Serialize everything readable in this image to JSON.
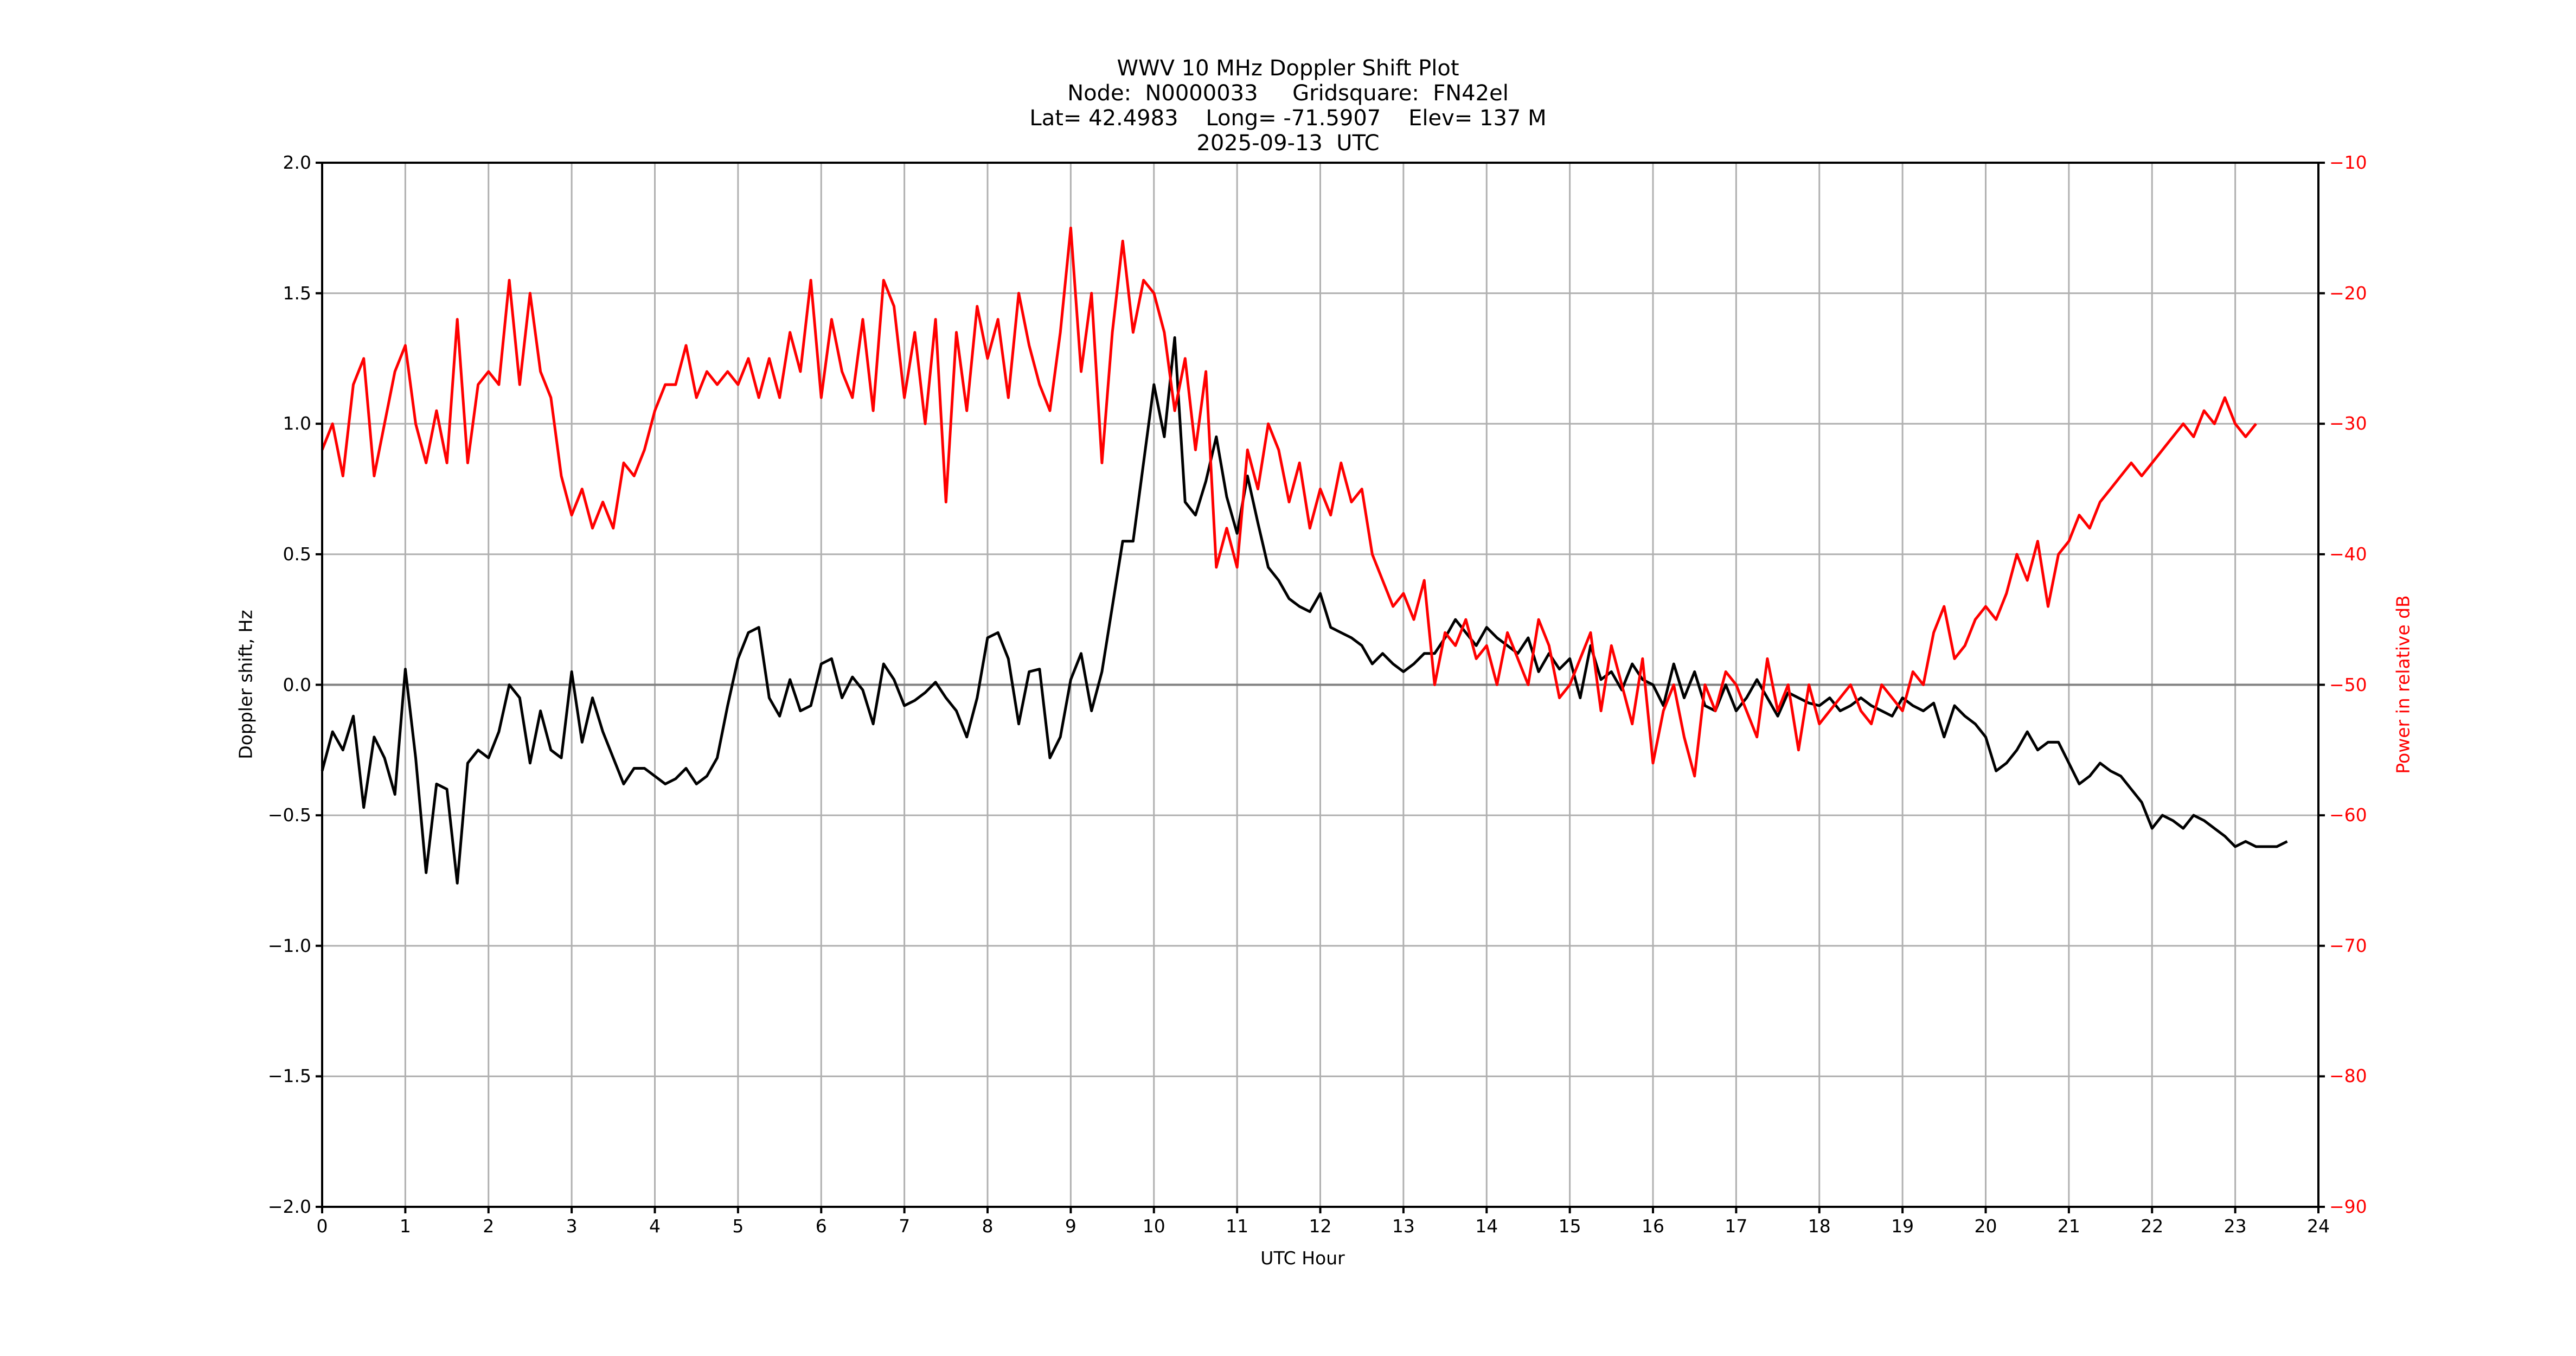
{
  "figure": {
    "title_lines": [
      "WWV 10 MHz Doppler Shift Plot",
      "Node:  N0000033     Gridsquare:  FN42el",
      "Lat= 42.4983    Long= -71.5907    Elev= 137 M",
      "2025-09-13  UTC"
    ],
    "xlabel": "UTC Hour",
    "ylabel_left": "Doppler shift, Hz",
    "ylabel_right": "Power in relative dB",
    "colors": {
      "doppler": "#000000",
      "power": "#ff0000",
      "grid": "#b0b0b0",
      "zero_line": "#808080",
      "right_axis_text": "#ff0000"
    }
  },
  "axes": {
    "x_ticks": [
      "0",
      "1",
      "2",
      "3",
      "4",
      "5",
      "6",
      "7",
      "8",
      "9",
      "10",
      "11",
      "12",
      "13",
      "14",
      "15",
      "16",
      "17",
      "18",
      "19",
      "20",
      "21",
      "22",
      "23",
      "24"
    ],
    "y_left_ticks": [
      "2.0",
      "1.5",
      "1.0",
      "0.5",
      "0.0",
      "−0.5",
      "−1.0",
      "−1.5",
      "−2.0"
    ],
    "y_right_ticks": [
      "−10",
      "−20",
      "−30",
      "−40",
      "−50",
      "−60",
      "−70",
      "−80",
      "−90"
    ]
  },
  "chart_data": {
    "type": "line",
    "title": "WWV 10 MHz Doppler Shift Plot",
    "subtitle": "Node: N0000033  Gridsquare: FN42el  Lat= 42.4983  Long= -71.5907  Elev= 137 M  2025-09-13 UTC",
    "xlabel": "UTC Hour",
    "ylabel": "Doppler shift, Hz",
    "y2label": "Power in relative dB",
    "xlim": [
      0,
      24
    ],
    "ylim": [
      -2.0,
      2.0
    ],
    "y2lim": [
      -90,
      -10
    ],
    "grid": true,
    "legend": "none",
    "x_step_hours": 0.125,
    "x": [
      0.0,
      0.125,
      0.25,
      0.375,
      0.5,
      0.625,
      0.75,
      0.875,
      1.0,
      1.125,
      1.25,
      1.375,
      1.5,
      1.625,
      1.75,
      1.875,
      2.0,
      2.125,
      2.25,
      2.375,
      2.5,
      2.625,
      2.75,
      2.875,
      3.0,
      3.125,
      3.25,
      3.375,
      3.5,
      3.625,
      3.75,
      3.875,
      4.0,
      4.125,
      4.25,
      4.375,
      4.5,
      4.625,
      4.75,
      4.875,
      5.0,
      5.125,
      5.25,
      5.375,
      5.5,
      5.625,
      5.75,
      5.875,
      6.0,
      6.125,
      6.25,
      6.375,
      6.5,
      6.625,
      6.75,
      6.875,
      7.0,
      7.125,
      7.25,
      7.375,
      7.5,
      7.625,
      7.75,
      7.875,
      8.0,
      8.125,
      8.25,
      8.375,
      8.5,
      8.625,
      8.75,
      8.875,
      9.0,
      9.125,
      9.25,
      9.375,
      9.5,
      9.625,
      9.75,
      9.875,
      10.0,
      10.125,
      10.25,
      10.375,
      10.5,
      10.625,
      10.75,
      10.875,
      11.0,
      11.125,
      11.25,
      11.375,
      11.5,
      11.625,
      11.75,
      11.875,
      12.0,
      12.125,
      12.25,
      12.375,
      12.5,
      12.625,
      12.75,
      12.875,
      13.0,
      13.125,
      13.25,
      13.375,
      13.5,
      13.625,
      13.75,
      13.875,
      14.0,
      14.125,
      14.25,
      14.375,
      14.5,
      14.625,
      14.75,
      14.875,
      15.0,
      15.125,
      15.25,
      15.375,
      15.5,
      15.625,
      15.75,
      15.875,
      16.0,
      16.125,
      16.25,
      16.375,
      16.5,
      16.625,
      16.75,
      16.875,
      17.0,
      17.125,
      17.25,
      17.375,
      17.5,
      17.625,
      17.75,
      17.875,
      18.0,
      18.125,
      18.25,
      18.375,
      18.5,
      18.625,
      18.75,
      18.875,
      19.0,
      19.125,
      19.25,
      19.375,
      19.5,
      19.625,
      19.75,
      19.875,
      20.0,
      20.125,
      20.25,
      20.375,
      20.5,
      20.625,
      20.75,
      20.875,
      21.0,
      21.125,
      21.25,
      21.375,
      21.5,
      21.625,
      21.75,
      21.875,
      22.0,
      22.125,
      22.25,
      22.375,
      22.5,
      22.625,
      22.75,
      22.875,
      23.0,
      23.125,
      23.25,
      23.375,
      23.5,
      23.625,
      23.75,
      23.875,
      24.0
    ],
    "series": [
      {
        "name": "Doppler shift",
        "axis": "left",
        "units": "Hz",
        "color": "#000000",
        "values": [
          -0.33,
          -0.18,
          -0.25,
          -0.12,
          -0.47,
          -0.2,
          -0.28,
          -0.42,
          0.06,
          -0.28,
          -0.72,
          -0.38,
          -0.4,
          -0.76,
          -0.3,
          -0.25,
          -0.28,
          -0.18,
          0.0,
          -0.05,
          -0.3,
          -0.1,
          -0.25,
          -0.28,
          0.05,
          -0.22,
          -0.05,
          -0.18,
          -0.28,
          -0.38,
          -0.32,
          -0.32,
          -0.35,
          -0.38,
          -0.36,
          -0.32,
          -0.38,
          -0.35,
          -0.28,
          -0.08,
          0.1,
          0.2,
          0.22,
          -0.05,
          -0.12,
          0.02,
          -0.1,
          -0.08,
          0.08,
          0.1,
          -0.05,
          0.03,
          -0.02,
          -0.15,
          0.08,
          0.02,
          -0.08,
          -0.06,
          -0.03,
          0.01,
          -0.05,
          -0.1,
          -0.2,
          -0.05,
          0.18,
          0.2,
          0.1,
          -0.15,
          0.05,
          0.06,
          -0.28,
          -0.2,
          0.02,
          0.12,
          -0.1,
          0.05,
          0.3,
          0.55,
          0.55,
          0.85,
          1.15,
          0.95,
          1.33,
          0.7,
          0.65,
          0.78,
          0.95,
          0.72,
          0.58,
          0.8,
          0.62,
          0.45,
          0.4,
          0.33,
          0.3,
          0.28,
          0.35,
          0.22,
          0.2,
          0.18,
          0.15,
          0.08,
          0.12,
          0.08,
          0.05,
          0.08,
          0.12,
          0.12,
          0.18,
          0.25,
          0.2,
          0.15,
          0.22,
          0.18,
          0.15,
          0.12,
          0.18,
          0.05,
          0.12,
          0.06,
          0.1,
          -0.05,
          0.15,
          0.02,
          0.05,
          -0.02,
          0.08,
          0.02,
          0.0,
          -0.08,
          0.08,
          -0.05,
          0.05,
          -0.08,
          -0.1,
          0.0,
          -0.1,
          -0.05,
          0.02,
          -0.05,
          -0.12,
          -0.03,
          -0.05,
          -0.07,
          -0.08,
          -0.05,
          -0.1,
          -0.08,
          -0.05,
          -0.08,
          -0.1,
          -0.12,
          -0.05,
          -0.08,
          -0.1,
          -0.07,
          -0.2,
          -0.08,
          -0.12,
          -0.15,
          -0.2,
          -0.33,
          -0.3,
          -0.25,
          -0.18,
          -0.25,
          -0.22,
          -0.22,
          -0.3,
          -0.38,
          -0.35,
          -0.3,
          -0.33,
          -0.35,
          -0.4,
          -0.45,
          -0.55,
          -0.5,
          -0.52,
          -0.55,
          -0.5,
          -0.52,
          -0.55,
          -0.58,
          -0.62,
          -0.6,
          -0.62,
          -0.62,
          -0.62,
          -0.6
        ]
      },
      {
        "name": "Power",
        "axis": "right",
        "units": "relative dB",
        "color": "#ff0000",
        "values": [
          -32,
          -30,
          -34,
          -27,
          -25,
          -34,
          -30,
          -26,
          -24,
          -30,
          -33,
          -29,
          -33,
          -22,
          -33,
          -27,
          -26,
          -27,
          -19,
          -27,
          -20,
          -26,
          -28,
          -34,
          -37,
          -35,
          -38,
          -36,
          -38,
          -33,
          -34,
          -32,
          -29,
          -27,
          -27,
          -24,
          -28,
          -26,
          -27,
          -26,
          -27,
          -25,
          -28,
          -25,
          -28,
          -23,
          -26,
          -19,
          -28,
          -22,
          -26,
          -28,
          -22,
          -29,
          -19,
          -21,
          -28,
          -23,
          -30,
          -22,
          -36,
          -23,
          -29,
          -21,
          -25,
          -22,
          -28,
          -20,
          -24,
          -27,
          -29,
          -23,
          -15,
          -26,
          -20,
          -33,
          -23,
          -16,
          -23,
          -19,
          -20,
          -23,
          -29,
          -25,
          -32,
          -26,
          -41,
          -38,
          -41,
          -32,
          -35,
          -30,
          -32,
          -36,
          -33,
          -38,
          -35,
          -37,
          -33,
          -36,
          -35,
          -40,
          -42,
          -44,
          -43,
          -45,
          -42,
          -50,
          -46,
          -47,
          -45,
          -48,
          -47,
          -50,
          -46,
          -48,
          -50,
          -45,
          -47,
          -51,
          -50,
          -48,
          -46,
          -52,
          -47,
          -50,
          -53,
          -48,
          -56,
          -52,
          -50,
          -54,
          -57,
          -50,
          -52,
          -49,
          -50,
          -52,
          -54,
          -48,
          -52,
          -50,
          -55,
          -50,
          -53,
          -52,
          -51,
          -50,
          -52,
          -53,
          -50,
          -51,
          -52,
          -49,
          -50,
          -46,
          -44,
          -48,
          -47,
          -45,
          -44,
          -45,
          -43,
          -40,
          -42,
          -39,
          -44,
          -40,
          -39,
          -37,
          -38,
          -36,
          -35,
          -34,
          -33,
          -34,
          -33,
          -32,
          -31,
          -30,
          -31,
          -29,
          -30,
          -28,
          -30,
          -31,
          -30
        ]
      }
    ]
  }
}
